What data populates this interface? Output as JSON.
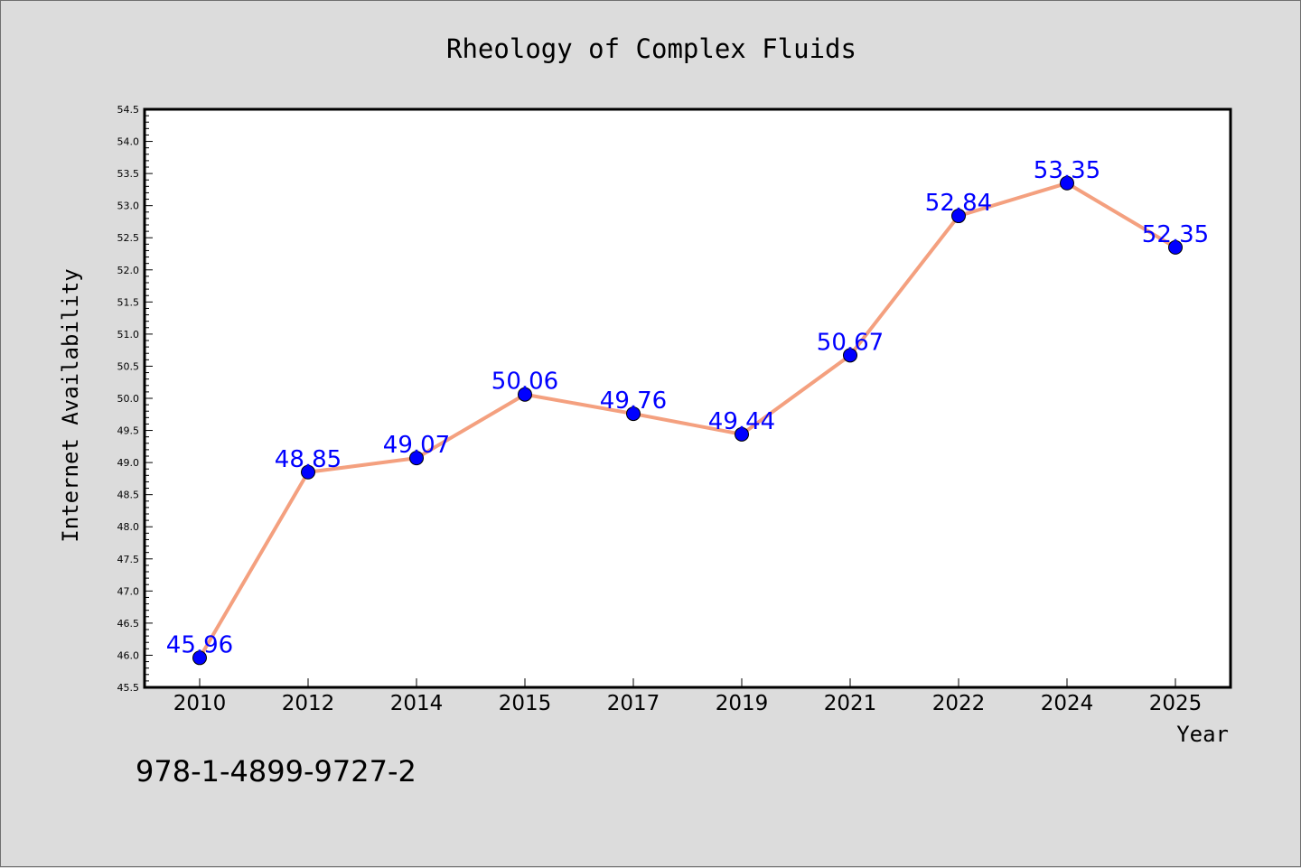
{
  "chart_data": {
    "type": "line",
    "title": "Rheology of Complex Fluids",
    "xlabel": "Year",
    "ylabel": "Internet Availability",
    "categories": [
      "2010",
      "2012",
      "2014",
      "2015",
      "2017",
      "2019",
      "2021",
      "2022",
      "2024",
      "2025"
    ],
    "series": [
      {
        "values": [
          45.96,
          48.85,
          49.07,
          50.06,
          49.76,
          49.44,
          50.67,
          52.84,
          53.35,
          52.35
        ],
        "line_color": "#f4a07f",
        "marker_color": "#0000ff"
      }
    ],
    "data_labels": [
      "45.96",
      "48.85",
      "49.07",
      "50.06",
      "49.76",
      "49.44",
      "50.67",
      "52.84",
      "53.35",
      "52.35"
    ],
    "ylim": [
      45.5,
      54.5
    ],
    "yticks": [
      "45.5",
      "46.0",
      "46.5",
      "47.0",
      "47.5",
      "48.0",
      "48.5",
      "49.0",
      "49.5",
      "50.0",
      "50.5",
      "51.0",
      "51.5",
      "52.0",
      "52.5",
      "53.0",
      "53.5",
      "54.0",
      "54.5"
    ],
    "grid": false,
    "legend": "none"
  },
  "annotation": "978-1-4899-9727-2"
}
